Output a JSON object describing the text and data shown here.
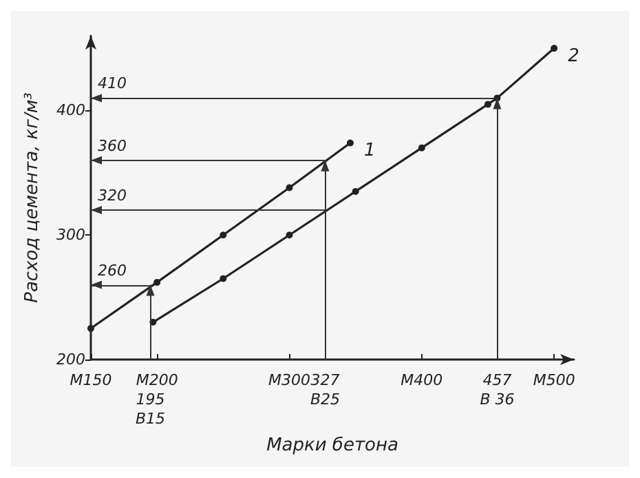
{
  "chart_data": {
    "type": "line",
    "xlabel": "Марки бетона",
    "ylabel": "Расход цемента, кг/м³",
    "series": [
      {
        "name": "1",
        "color": "#222222",
        "x": [
          150,
          200,
          250,
          300,
          346
        ],
        "values": [
          225,
          262,
          300,
          338,
          374
        ]
      },
      {
        "name": "2",
        "color": "#222222",
        "x": [
          197,
          250,
          300,
          350,
          400,
          450,
          457,
          500
        ],
        "values": [
          230,
          265,
          300,
          335,
          370,
          405,
          410,
          450
        ]
      }
    ],
    "xlim": [
      150,
      515
    ],
    "ylim": [
      200,
      460
    ],
    "xticks": [
      {
        "value": 150,
        "label": "M150"
      },
      {
        "value": 200,
        "label": "M200"
      },
      {
        "value": 300,
        "label": "M300"
      },
      327,
      {
        "value": 400,
        "label": "M400"
      },
      457,
      {
        "value": 500,
        "label": "M500"
      }
    ],
    "yticks": [
      200,
      300,
      400
    ],
    "ref_lines": [
      {
        "axis": "y",
        "value": 410,
        "label": "410"
      },
      {
        "axis": "y",
        "value": 360,
        "label": "360"
      },
      {
        "axis": "y",
        "value": 320,
        "label": "320"
      },
      {
        "axis": "y",
        "value": 260,
        "label": "260"
      },
      {
        "axis": "x",
        "value": 195,
        "label": "195\nВ15"
      },
      {
        "axis": "x",
        "value": 327,
        "label": "В25"
      },
      {
        "axis": "x",
        "value": 457,
        "label": "В 36"
      }
    ],
    "grid": false,
    "legend": false,
    "marker": "circle",
    "line_style": "solid"
  }
}
